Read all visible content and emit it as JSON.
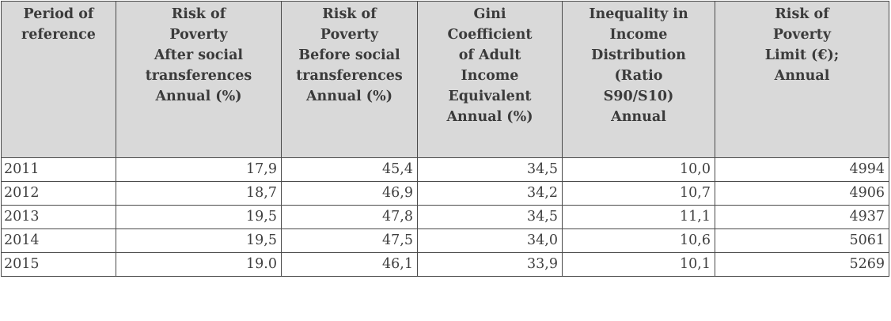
{
  "table": {
    "headers": [
      [
        "Period of",
        "reference"
      ],
      [
        "Risk of",
        "Poverty",
        "After social",
        "transferences",
        "Annual (%)"
      ],
      [
        "Risk of",
        "Poverty",
        "Before social",
        "transferences",
        "Annual (%)"
      ],
      [
        "Gini",
        "Coefficient",
        "of Adult",
        "Income",
        "Equivalent",
        "Annual (%)"
      ],
      [
        "Inequality in",
        "Income",
        "Distribution",
        "(Ratio",
        "S90/S10)",
        "Annual"
      ],
      [
        "Risk of",
        "Poverty",
        "Limit (€);",
        "Annual"
      ]
    ],
    "rows": [
      [
        "2011",
        "17,9",
        "45,4",
        "34,5",
        "10,0",
        "4994"
      ],
      [
        "2012",
        "18,7",
        "46,9",
        "34,2",
        "10,7",
        "4906"
      ],
      [
        "2013",
        "19,5",
        "47,8",
        "34,5",
        "11,1",
        "4937"
      ],
      [
        "2014",
        "19,5",
        "47,5",
        "34,0",
        "10,6",
        "5061"
      ],
      [
        "2015",
        "19.0",
        "46,1",
        "33,9",
        "10,1",
        "5269"
      ]
    ]
  }
}
